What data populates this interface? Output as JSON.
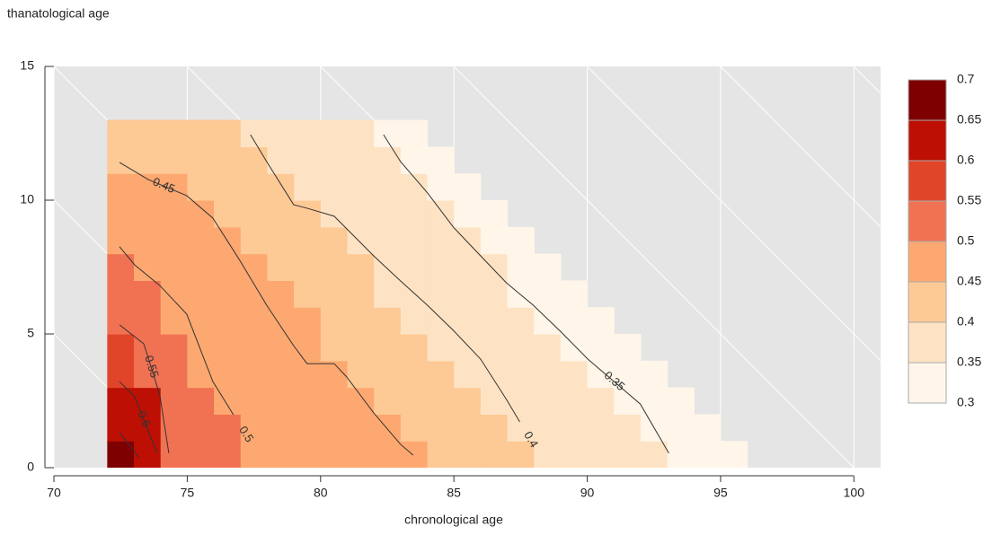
{
  "chart_data": {
    "type": "heatmap",
    "title": "thanatological age",
    "xlabel": "chronological age",
    "x": [
      72.5,
      73.5,
      74.5,
      75.5,
      76.5,
      77.5,
      78.5,
      79.5,
      80.5,
      81.5,
      82.5,
      83.5,
      84.5,
      85.5,
      86.5,
      87.5,
      88.5,
      89.5,
      90.5,
      91.5,
      92.5,
      93.5,
      94.5,
      95.5
    ],
    "y": [
      0.5,
      1.5,
      2.5,
      3.5,
      4.5,
      5.5,
      6.5,
      7.5,
      8.5,
      9.5,
      10.5,
      11.5,
      12.5
    ],
    "z": [
      [
        0.675,
        0.625,
        0.525,
        0.525,
        0.525,
        0.475,
        0.475,
        0.475,
        0.475,
        0.475,
        0.475,
        0.475,
        0.425,
        0.425,
        0.425,
        0.425,
        0.375,
        0.375,
        0.375,
        0.375,
        0.375,
        0.325,
        0.325,
        0.325
      ],
      [
        0.625,
        0.625,
        0.525,
        0.525,
        0.525,
        0.475,
        0.475,
        0.475,
        0.475,
        0.475,
        0.475,
        0.425,
        0.425,
        0.425,
        0.425,
        0.375,
        0.375,
        0.375,
        0.375,
        0.375,
        0.325,
        0.325,
        0.325,
        null
      ],
      [
        0.625,
        0.625,
        0.525,
        0.525,
        0.475,
        0.475,
        0.475,
        0.475,
        0.475,
        0.475,
        0.425,
        0.425,
        0.425,
        0.425,
        0.375,
        0.375,
        0.375,
        0.375,
        0.375,
        0.325,
        0.325,
        0.325,
        null,
        null
      ],
      [
        0.575,
        0.525,
        0.525,
        0.475,
        0.475,
        0.475,
        0.475,
        0.475,
        0.475,
        0.425,
        0.425,
        0.425,
        0.425,
        0.375,
        0.375,
        0.375,
        0.375,
        0.375,
        0.325,
        0.325,
        0.325,
        null,
        null,
        null
      ],
      [
        0.575,
        0.525,
        0.525,
        0.475,
        0.475,
        0.475,
        0.475,
        0.475,
        0.425,
        0.425,
        0.425,
        0.425,
        0.375,
        0.375,
        0.375,
        0.375,
        0.375,
        0.325,
        0.325,
        0.325,
        null,
        null,
        null,
        null
      ],
      [
        0.525,
        0.525,
        0.475,
        0.475,
        0.475,
        0.475,
        0.475,
        0.475,
        0.425,
        0.425,
        0.425,
        0.375,
        0.375,
        0.375,
        0.375,
        0.375,
        0.325,
        0.325,
        0.325,
        null,
        null,
        null,
        null,
        null
      ],
      [
        0.525,
        0.525,
        0.475,
        0.475,
        0.475,
        0.475,
        0.475,
        0.425,
        0.425,
        0.425,
        0.375,
        0.375,
        0.375,
        0.375,
        0.375,
        0.325,
        0.325,
        0.325,
        null,
        null,
        null,
        null,
        null,
        null
      ],
      [
        0.525,
        0.475,
        0.475,
        0.475,
        0.475,
        0.475,
        0.425,
        0.425,
        0.425,
        0.425,
        0.375,
        0.375,
        0.375,
        0.375,
        0.375,
        0.325,
        0.325,
        null,
        null,
        null,
        null,
        null,
        null,
        null
      ],
      [
        0.475,
        0.475,
        0.475,
        0.475,
        0.475,
        0.425,
        0.425,
        0.425,
        0.425,
        0.375,
        0.375,
        0.375,
        0.375,
        0.375,
        0.325,
        0.325,
        null,
        null,
        null,
        null,
        null,
        null,
        null,
        null
      ],
      [
        0.475,
        0.475,
        0.475,
        0.475,
        0.425,
        0.425,
        0.425,
        0.425,
        0.375,
        0.375,
        0.375,
        0.375,
        0.375,
        0.325,
        0.325,
        null,
        null,
        null,
        null,
        null,
        null,
        null,
        null,
        null
      ],
      [
        0.475,
        0.475,
        0.475,
        0.425,
        0.425,
        0.425,
        0.425,
        0.375,
        0.375,
        0.375,
        0.375,
        0.375,
        0.325,
        0.325,
        null,
        null,
        null,
        null,
        null,
        null,
        null,
        null,
        null,
        null
      ],
      [
        0.425,
        0.425,
        0.425,
        0.425,
        0.425,
        0.425,
        0.375,
        0.375,
        0.375,
        0.375,
        0.375,
        0.325,
        0.325,
        null,
        null,
        null,
        null,
        null,
        null,
        null,
        null,
        null,
        null,
        null
      ],
      [
        0.425,
        0.425,
        0.425,
        0.425,
        0.425,
        0.375,
        0.375,
        0.375,
        0.375,
        0.375,
        0.325,
        0.325,
        null,
        null,
        null,
        null,
        null,
        null,
        null,
        null,
        null,
        null,
        null,
        null
      ]
    ],
    "contours": [
      {
        "label": "0.35",
        "x": [
          82.36,
          83.0,
          84.01,
          84.98,
          86.0,
          86.97,
          87.98,
          89.02,
          90.02,
          91.99,
          93.06
        ],
        "y": [
          12.45,
          11.44,
          10.27,
          8.99,
          7.92,
          6.91,
          6.07,
          5.07,
          4.06,
          2.38,
          0.54
        ]
      },
      {
        "label": "0.4",
        "x": [
          77.37,
          77.98,
          78.99,
          79.49,
          80.51,
          80.98,
          81.99,
          83.0,
          84.01,
          84.98,
          86.0,
          86.97,
          87.47
        ],
        "y": [
          12.45,
          11.44,
          9.83,
          9.7,
          9.4,
          8.93,
          7.92,
          6.98,
          6.07,
          5.13,
          4.06,
          2.55,
          1.71
        ]
      },
      {
        "label": "0.45",
        "x": [
          72.46,
          73.54,
          74.98,
          75.96,
          76.97,
          77.98,
          78.99,
          79.49,
          80.51,
          80.98,
          81.99,
          83.0,
          83.47
        ],
        "y": [
          11.41,
          10.77,
          10.17,
          9.33,
          7.75,
          6.07,
          4.56,
          3.89,
          3.89,
          3.39,
          2.05,
          0.87,
          0.47
        ]
      },
      {
        "label": "0.5",
        "x": [
          72.46,
          73.03,
          73.97,
          74.98,
          75.96,
          76.73
        ],
        "y": [
          8.26,
          7.58,
          6.81,
          5.74,
          3.22,
          1.98
        ]
      },
      {
        "label": "0.55",
        "x": [
          72.46,
          73.37,
          73.97,
          74.31
        ],
        "y": [
          5.34,
          4.63,
          2.72,
          0.54
        ]
      },
      {
        "label": "0.6",
        "x": [
          72.46,
          73.03,
          73.87
        ],
        "y": [
          3.22,
          2.65,
          0.54
        ]
      },
      {
        "label": null,
        "x": [
          72.46,
          73.2
        ],
        "y": [
          1.31,
          0.37
        ]
      }
    ],
    "contour_color": "#333333",
    "legend": {
      "breaks": [
        0.3,
        0.35,
        0.4,
        0.45,
        0.5,
        0.55,
        0.6,
        0.65,
        0.7
      ],
      "colors": [
        "#fff5e9",
        "#fde3c3",
        "#fdc995",
        "#fca870",
        "#f07253",
        "#e0452a",
        "#bd0f03",
        "#7f0000"
      ]
    },
    "xlim": [
      70,
      101
    ],
    "ylim": [
      0,
      15
    ],
    "xticks": [
      70,
      75,
      80,
      85,
      90,
      95,
      100
    ],
    "yticks": [
      0,
      5,
      10,
      15
    ],
    "background": "#e5e5e5",
    "grid": true,
    "diagonal_grid": true
  }
}
